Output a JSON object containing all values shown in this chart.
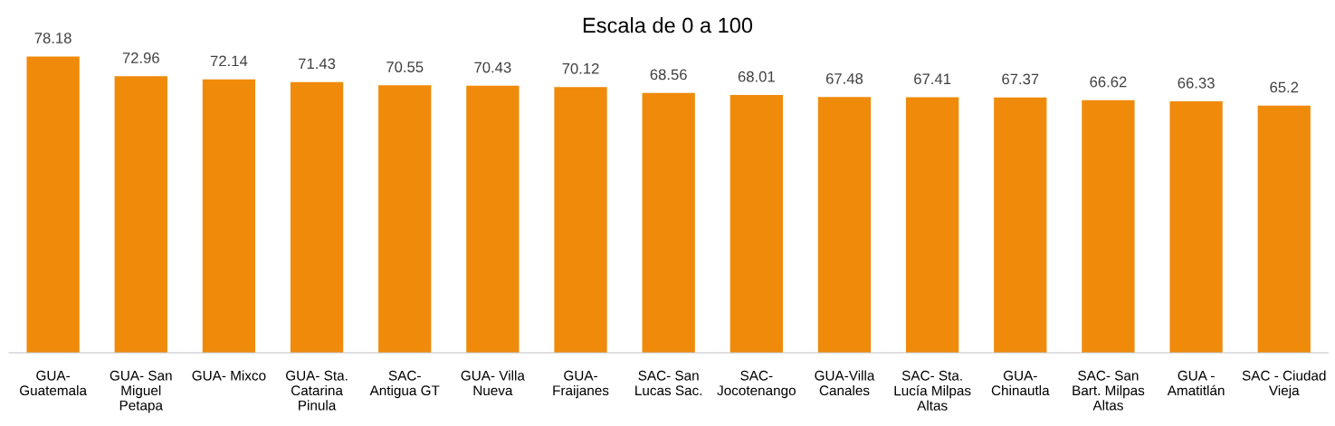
{
  "chart_data": {
    "type": "bar",
    "subtitle": "Escala de 0 a 100",
    "categories": [
      "GUA-\nGuatemala",
      "GUA- San\nMiguel\nPetapa",
      "GUA- Mixco",
      "GUA- Sta.\nCatarina\nPinula",
      "SAC-\nAntigua GT",
      "GUA- Villa\nNueva",
      "GUA-\nFraijanes",
      "SAC- San\nLucas Sac.",
      "SAC-\nJocotenango",
      "GUA-Villa\nCanales",
      "SAC- Sta.\nLucía Milpas\nAltas",
      "GUA-\nChinautla",
      "SAC- San\nBart. Milpas\nAltas",
      "GUA -\nAmatitlán",
      "SAC - Ciudad\nVieja"
    ],
    "values": [
      78.18,
      72.96,
      72.14,
      71.43,
      70.55,
      70.43,
      70.12,
      68.56,
      68.01,
      67.48,
      67.41,
      67.37,
      66.62,
      66.33,
      65.2
    ],
    "color": "#f08a0b",
    "data_labels": true,
    "grid": false,
    "legend": false
  }
}
